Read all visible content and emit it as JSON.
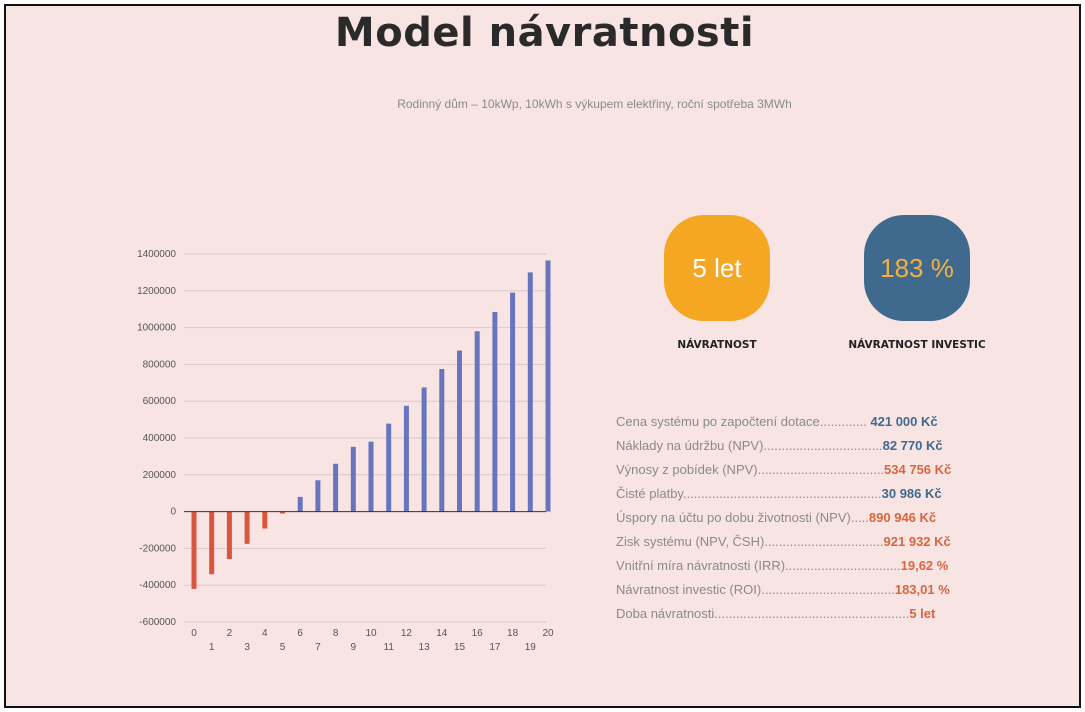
{
  "page": {
    "title": "Model návratnosti",
    "subtitle": "Rodinný dům – 10kWp, 10kWh s výkupem elektřiny, roční spotřeba 3MWh"
  },
  "badges": [
    {
      "value": "5 let",
      "label": "NÁVRATNOST",
      "bg": "#f5a623",
      "fg": "#ffffff"
    },
    {
      "value": "183 %",
      "label": "NÁVRATNOST INVESTIC",
      "bg": "#3f6a8e",
      "fg": "#f5b042"
    }
  ],
  "stats": [
    {
      "label": "Cena systému po započtení dotace",
      "dots": ".............",
      "value": "421 000 Kč",
      "color": "#3f6a8e"
    },
    {
      "label": "Náklady na údržbu (NPV)",
      "dots": ".................................",
      "value": "82 770 Kč",
      "color": "#3f6a8e"
    },
    {
      "label": "Výnosy z pobídek (NPV)",
      "dots": "...................................",
      "value": "534 756 Kč",
      "color": "#d9663f"
    },
    {
      "label": "Čisté platby",
      "dots": ".......................................................",
      "value": "30 986 Kč",
      "color": "#3f6a8e"
    },
    {
      "label": "Úspory na účtu po dobu životnosti (NPV)",
      "dots": ".....",
      "value": "890 946 Kč",
      "color": "#d9663f"
    },
    {
      "label": "Zisk systému (NPV, ČSH)",
      "dots": ".................................",
      "value": "921 932 Kč",
      "color": "#d9663f"
    },
    {
      "label": "Vnitřní míra návratnosti (IRR)",
      "dots": "................................",
      "value": "19,62 %",
      "color": "#d9663f"
    },
    {
      "label": "Návratnost investic (ROI)",
      "dots": ".....................................",
      "value": "183,01 %",
      "color": "#d9663f"
    },
    {
      "label": "Doba návratnosti",
      "dots": "......................................................",
      "value": "5 let",
      "color": "#d9663f"
    }
  ],
  "chart_data": {
    "type": "bar",
    "categories": [
      "0",
      "1",
      "2",
      "3",
      "4",
      "5",
      "6",
      "7",
      "8",
      "9",
      "10",
      "11",
      "12",
      "13",
      "14",
      "15",
      "16",
      "17",
      "18",
      "19",
      "20"
    ],
    "values": [
      -420000,
      -340000,
      -258000,
      -175000,
      -92000,
      -10000,
      80000,
      170000,
      260000,
      352000,
      380000,
      478000,
      575000,
      675000,
      775000,
      875000,
      980000,
      1085000,
      1190000,
      1300000,
      1365000
    ],
    "yticks": [
      "1400000",
      "1200000",
      "1000000",
      "800000",
      "600000",
      "400000",
      "200000",
      "0",
      "-200000",
      "-400000",
      "-600000"
    ],
    "ylim": [
      -600000,
      1400000
    ],
    "grid": true,
    "positive_color": "#6675bd",
    "negative_color": "#d9553d"
  }
}
